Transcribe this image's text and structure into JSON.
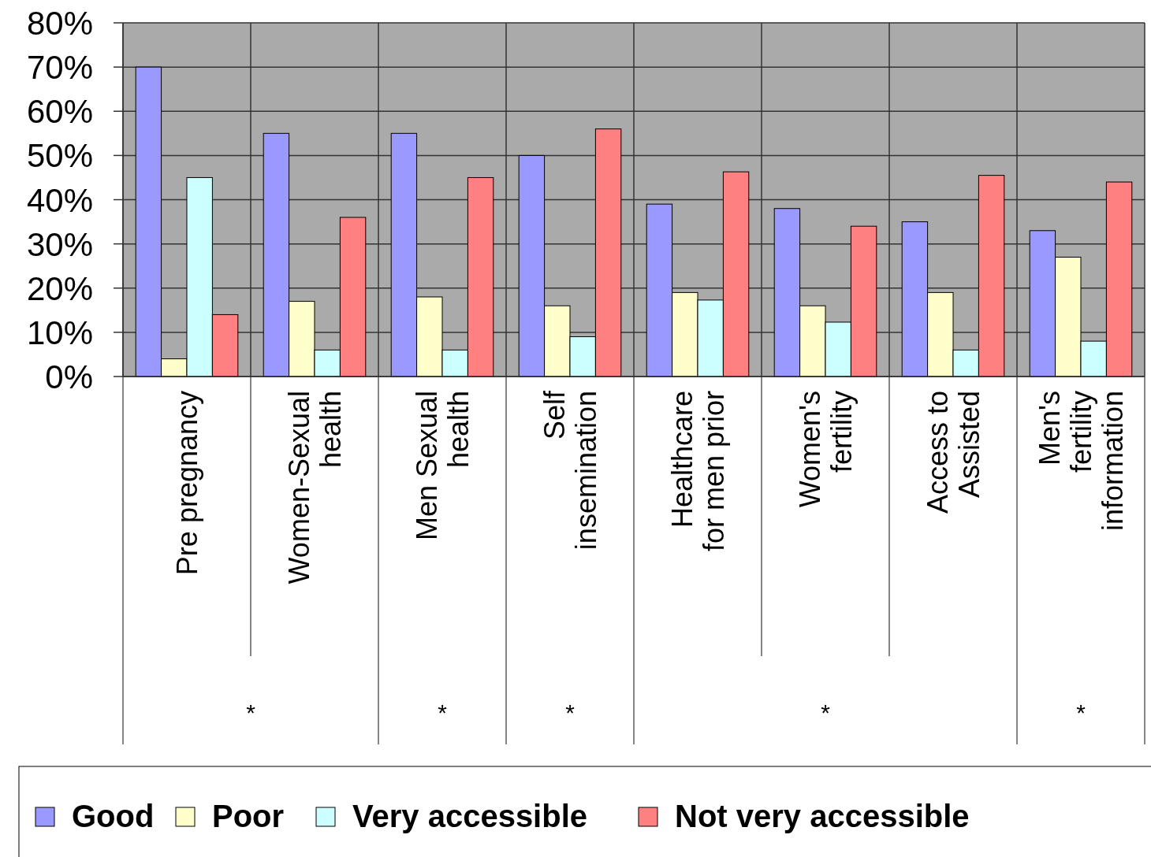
{
  "chart_data": {
    "type": "bar",
    "categories": [
      "Pre pregnancy",
      "Women-Sexual health",
      "Men Sexual health",
      "Self insemination",
      "Healthcare for men prior",
      "Women's fertility",
      "Access to Assisted",
      "Men's fertility information"
    ],
    "series": [
      {
        "name": "Good",
        "color": "#9999ff",
        "values": [
          70,
          55,
          55,
          50,
          39,
          38,
          35,
          33
        ]
      },
      {
        "name": "Poor",
        "color": "#ffffcc",
        "values": [
          4,
          17,
          18,
          16,
          19,
          16,
          19,
          27
        ]
      },
      {
        "name": "Very accessible",
        "color": "#ccffff",
        "values": [
          45,
          6,
          6,
          9,
          17.3,
          12.3,
          6,
          8
        ]
      },
      {
        "name": "Not very accessible",
        "color": "#ff8080",
        "values": [
          14,
          36,
          45,
          56,
          46.3,
          34,
          45.5,
          44
        ]
      }
    ],
    "ylim": [
      0,
      80
    ],
    "yticks": [
      {
        "value": 0,
        "label": "0%"
      },
      {
        "value": 10,
        "label": "10%"
      },
      {
        "value": 20,
        "label": "20%"
      },
      {
        "value": 30,
        "label": "30%"
      },
      {
        "value": 40,
        "label": "40%"
      },
      {
        "value": 50,
        "label": "50%"
      },
      {
        "value": 60,
        "label": "60%"
      },
      {
        "value": 70,
        "label": "70%"
      },
      {
        "value": 80,
        "label": "80%"
      }
    ],
    "grid": true,
    "legend": "bottom",
    "annotations": [
      "*",
      "*",
      "*",
      "*",
      "*"
    ]
  }
}
